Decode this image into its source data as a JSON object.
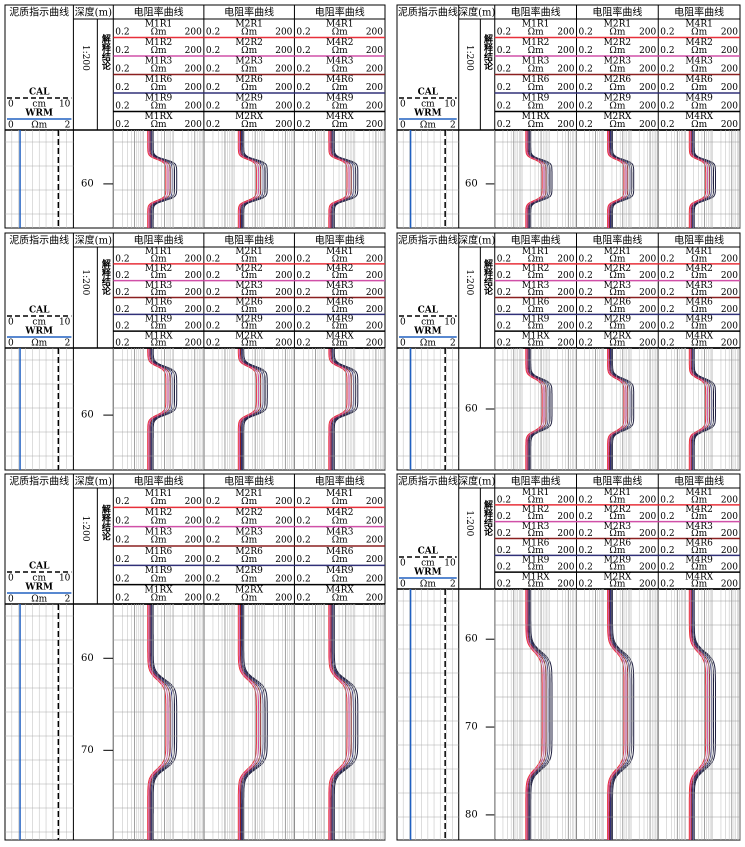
{
  "header": {
    "mud_title": "泥质指示曲线",
    "depth_title": "深度(m)",
    "resistivity_title": "电阻率曲线",
    "scale": "1:200",
    "conclusion": "解释结论"
  },
  "cal": {
    "name": "CAL",
    "min": "0",
    "unit": "cm",
    "max": "10"
  },
  "wrm": {
    "name": "WRM",
    "min": "0",
    "unit": "Ωm",
    "max": "2"
  },
  "curve_scale": {
    "min": "0.2",
    "unit": "Ωm",
    "max": "200"
  },
  "curve_colors": [
    "#e8303a",
    "#d050a8",
    "#8b2020",
    "#303078",
    "#000000",
    "#000000"
  ],
  "tracks": [
    {
      "curves": [
        "M1R1",
        "M1R2",
        "M1R3",
        "M1R6",
        "M1R9",
        "M1RX"
      ]
    },
    {
      "curves": [
        "M2R1",
        "M2R2",
        "M2R3",
        "M2R6",
        "M2R9",
        "M2RX"
      ]
    },
    {
      "curves": [
        "M4R1",
        "M4R2",
        "M4R3",
        "M4R6",
        "M4R9",
        "M4RX"
      ]
    }
  ],
  "panels": [
    {
      "depth_labels": [
        "60"
      ]
    },
    {
      "depth_labels": [
        "60"
      ]
    },
    {
      "depth_labels": [
        "60"
      ]
    },
    {
      "depth_labels": [
        "60"
      ]
    },
    {
      "depth_labels": [
        "60",
        "70"
      ]
    },
    {
      "depth_labels": [
        "60",
        "70",
        "80"
      ]
    }
  ]
}
